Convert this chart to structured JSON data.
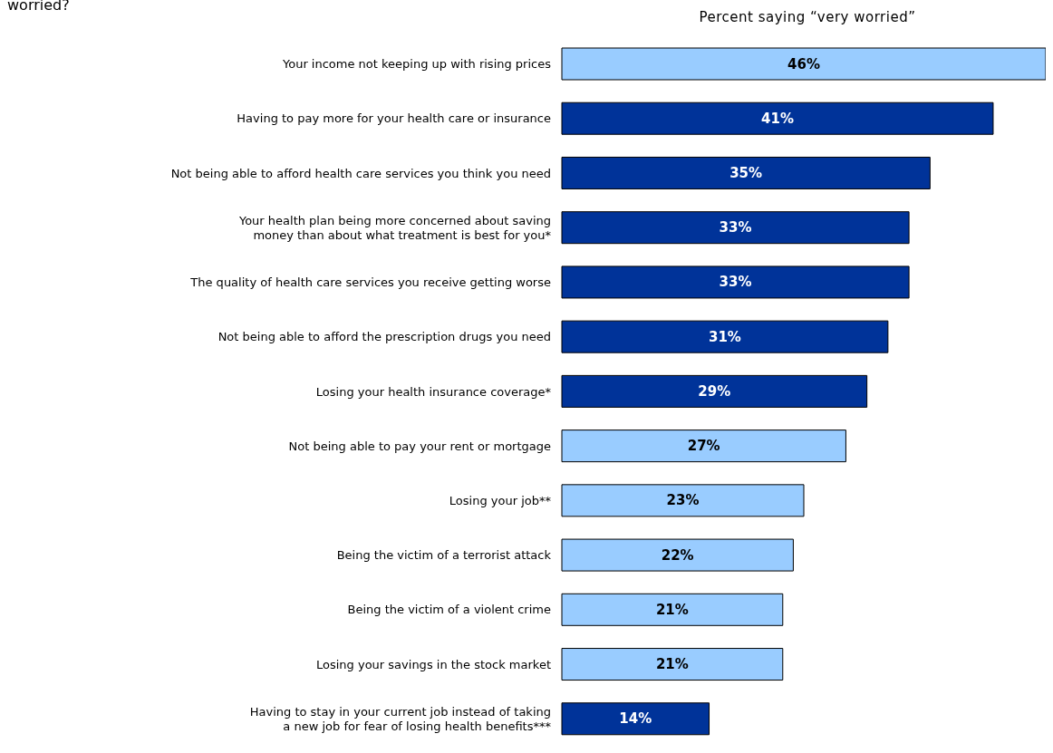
{
  "chart_data": {
    "type": "bar",
    "orientation": "horizontal",
    "title": "worried?",
    "subtitle": "Percent saying “very worried”",
    "categories": [
      "Your income not keeping up with rising prices",
      "Having to pay more for your health care or insurance",
      "Not being able to afford health care services you think you need",
      "Your health plan being more concerned about saving money than about what treatment is best for you*",
      "The quality of health care services you receive getting worse",
      "Not being able to afford the prescription drugs you need",
      "Losing your health insurance coverage*",
      "Not being able to pay your rent or mortgage",
      "Losing your job**",
      "Being the victim of a terrorist attack",
      "Being the victim of a violent crime",
      "Losing your savings in the stock market",
      "Having to stay in your current job instead of taking a new job for fear of losing health benefits***"
    ],
    "values": [
      46,
      41,
      35,
      33,
      33,
      31,
      29,
      27,
      23,
      22,
      21,
      21,
      14
    ],
    "value_labels": [
      "46%",
      "41%",
      "35%",
      "33%",
      "33%",
      "31%",
      "29%",
      "27%",
      "23%",
      "22%",
      "21%",
      "21%",
      "14%"
    ],
    "colors": [
      "#99ccff",
      "#003399",
      "#003399",
      "#003399",
      "#003399",
      "#003399",
      "#003399",
      "#99ccff",
      "#99ccff",
      "#99ccff",
      "#99ccff",
      "#99ccff",
      "#003399"
    ]
  }
}
